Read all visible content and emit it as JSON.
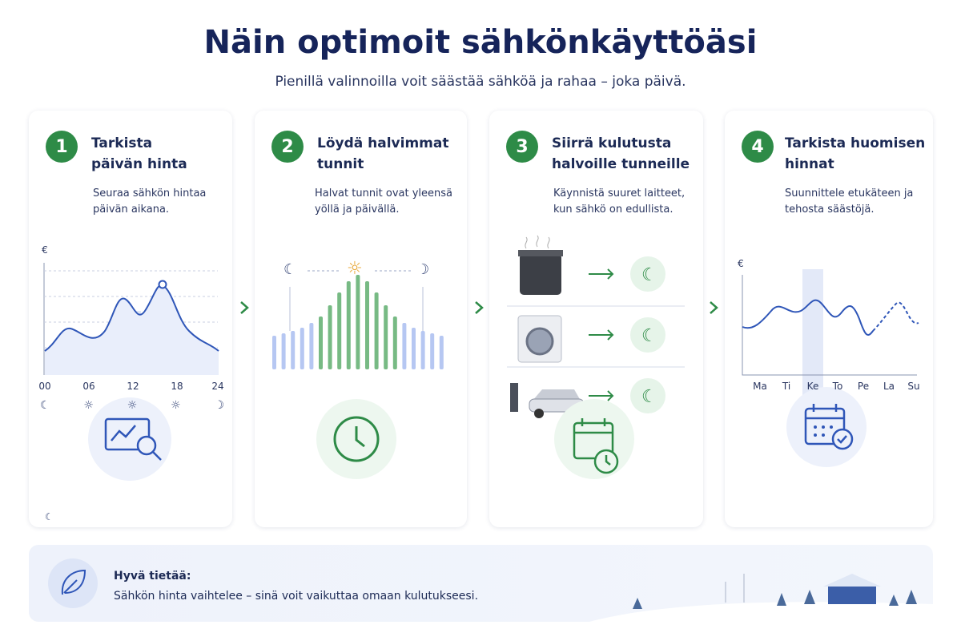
{
  "header": {
    "title": "Näin optimoit sähkönkäyttöäsi",
    "subtitle": "Pienillä valinnoilla voit säästää sähköä ja rahaa – joka päivä."
  },
  "steps": [
    {
      "number": "1",
      "title_lines": [
        "Tarkista",
        "päivän hinta"
      ],
      "description_lines": [
        "Seuraa sähkön hintaa",
        "päivän aikana."
      ],
      "axis_label": "€",
      "x_labels": [
        "00",
        "06",
        "12",
        "18",
        "24"
      ]
    },
    {
      "number": "2",
      "title_lines": [
        "Löydä halvimmat",
        "tunnit"
      ],
      "description_lines": [
        "Halvat tunnit ovat yleensä",
        "yöllä ja päivällä."
      ]
    },
    {
      "number": "3",
      "title_lines": [
        "Siirrä kulutusta",
        "halvoille tunneille"
      ],
      "description_lines": [
        "Käynnistä suuret laitteet,",
        "kun sähkö on edullista."
      ]
    },
    {
      "number": "4",
      "title_lines": [
        "Tarkista huomisen",
        "hinnat"
      ],
      "description_lines": [
        "Suunnittele etukäteen ja",
        "tehosta säästöjä."
      ],
      "axis_label": "€",
      "x_labels": [
        "Ma",
        "Ti",
        "Ke",
        "To",
        "Pe",
        "La",
        "Su"
      ]
    }
  ],
  "footer": {
    "title": "Hyvä tietää:",
    "text": "Sähkön hinta vaihtelee – sinä voit vaikuttaa omaan kulutukseesi."
  }
}
